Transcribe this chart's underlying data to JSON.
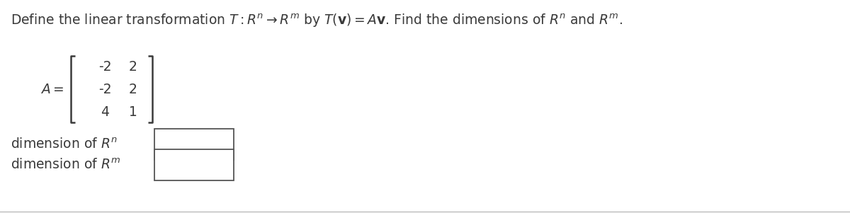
{
  "background_color": "#ffffff",
  "title_text": "Define the linear transformation $T: R^n \\rightarrow R^m$ by $T(\\mathbf{v}) = A\\mathbf{v}$. Find the dimensions of $R^n$ and $R^m$.",
  "title_fontsize": 13.5,
  "title_color": "#3a3a3a",
  "matrix_label": "$A =$",
  "matrix_rows": [
    [
      "-2",
      "2"
    ],
    [
      "-2",
      "2"
    ],
    [
      "4",
      "1"
    ]
  ],
  "dim_label_n": "dimension of $R^n$",
  "dim_label_m": "dimension of $R^m$",
  "label_fontsize": 13.5,
  "label_color": "#3a3a3a",
  "box_color": "#555555",
  "matrix_fontsize": 13.5,
  "bracket_color": "#3a3a3a"
}
